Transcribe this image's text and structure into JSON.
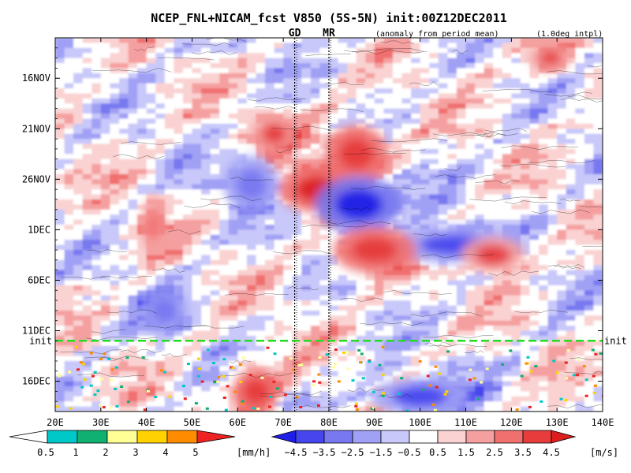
{
  "chart_data": {
    "type": "heatmap",
    "title": "NCEP_FNL+NICAM_fcst V850 (5S-5N) init:00Z12DEC2011",
    "subtitle_left": "(anomaly from period mean)",
    "subtitle_right": "(1.0deg intpl)",
    "x_axis": {
      "range": [
        20,
        140
      ],
      "ticks": [
        20,
        30,
        40,
        50,
        60,
        70,
        80,
        90,
        100,
        110,
        120,
        130,
        140
      ],
      "tick_labels": [
        "20E",
        "30E",
        "40E",
        "50E",
        "60E",
        "70E",
        "80E",
        "90E",
        "100E",
        "110E",
        "120E",
        "130E",
        "140E"
      ]
    },
    "y_axis": {
      "range": [
        "2011-11-12",
        "2011-12-19"
      ],
      "tick_labels": [
        "16NOV",
        "21NOV",
        "26NOV",
        "1DEC",
        "6DEC",
        "11DEC",
        "16DEC"
      ],
      "tick_dates": [
        "2011-11-16",
        "2011-11-21",
        "2011-11-26",
        "2011-12-01",
        "2011-12-06",
        "2011-12-11",
        "2011-12-16"
      ]
    },
    "markers": [
      {
        "label": "GD",
        "lon": 72.5,
        "color": "#ee2222"
      },
      {
        "label": "MR",
        "lon": 80,
        "color": "#ee2222"
      }
    ],
    "init_line": {
      "label": "init",
      "date": "2011-12-12",
      "color": "#22dd22"
    },
    "features": [
      {
        "sign": "pos",
        "lon": [
          70,
          85
        ],
        "date": [
          "2011-11-25",
          "2011-11-29"
        ],
        "peak": 4.5
      },
      {
        "sign": "pos",
        "lon": [
          80,
          92
        ],
        "date": [
          "2011-11-21",
          "2011-11-26"
        ],
        "peak": 4.0
      },
      {
        "sign": "pos",
        "lon": [
          64,
          72
        ],
        "date": [
          "2011-11-20",
          "2011-11-23"
        ],
        "peak": 3.5
      },
      {
        "sign": "neg",
        "lon": [
          78,
          95
        ],
        "date": [
          "2011-11-26",
          "2011-12-01"
        ],
        "peak": -4.5
      },
      {
        "sign": "neg",
        "lon": [
          95,
          120
        ],
        "date": [
          "2011-12-01",
          "2011-12-04"
        ],
        "peak": -3.5
      },
      {
        "sign": "pos",
        "lon": [
          82,
          98
        ],
        "date": [
          "2011-12-01",
          "2011-12-05"
        ],
        "peak": 4.0
      },
      {
        "sign": "pos",
        "lon": [
          110,
          122
        ],
        "date": [
          "2011-12-02",
          "2011-12-05"
        ],
        "peak": 3.5
      },
      {
        "sign": "pos",
        "lon": [
          40,
          43
        ],
        "date": [
          "2011-11-28",
          "2011-12-03"
        ],
        "peak": 3.0
      },
      {
        "sign": "neg",
        "lon": [
          40,
          48
        ],
        "date": [
          "2011-12-07",
          "2011-12-11"
        ],
        "peak": -3.0
      },
      {
        "sign": "neg",
        "lon": [
          58,
          68
        ],
        "date": [
          "2011-11-24",
          "2011-11-29"
        ],
        "peak": -2.5
      },
      {
        "sign": "pos",
        "lon": [
          125,
          132
        ],
        "date": [
          "2011-11-13",
          "2011-11-15"
        ],
        "peak": 3.5
      },
      {
        "sign": "pos",
        "lon": [
          60,
          68
        ],
        "date": [
          "2011-12-15",
          "2011-12-19"
        ],
        "peak": 4.0
      },
      {
        "sign": "neg",
        "lon": [
          90,
          110
        ],
        "date": [
          "2011-12-16",
          "2011-12-19"
        ],
        "peak": -3.5
      }
    ],
    "colorbar_precip": {
      "unit": "[mm/h]",
      "labels": [
        "0.5",
        "1",
        "2",
        "3",
        "4",
        "5"
      ],
      "colors": [
        "#00c8c8",
        "#10b070",
        "#ffff96",
        "#ffd200",
        "#ff8c00",
        "#ee2222"
      ]
    },
    "colorbar_wind": {
      "unit": "[m/s]",
      "labels": [
        "−4.5",
        "−3.5",
        "−2.5",
        "−1.5",
        "−0.5",
        "0.5",
        "1.5",
        "2.5",
        "3.5",
        "4.5"
      ],
      "colors": [
        "#1e1ee6",
        "#4646ee",
        "#7878f0",
        "#a0a0f5",
        "#c8c8fa",
        "#ffffff",
        "#fad2d2",
        "#f5a0a0",
        "#f07070",
        "#e63c3c",
        "#dc1e1e"
      ]
    }
  }
}
